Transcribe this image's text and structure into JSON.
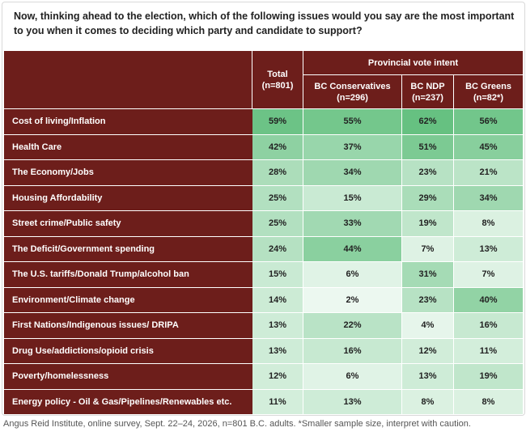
{
  "question": "Now, thinking ahead to the election, which of the following issues would you say are the most important to you when it comes to deciding which party and candidate to support?",
  "columns": {
    "total": [
      "Total",
      "(n=801)"
    ],
    "group_title": "Provincial vote intent",
    "sub": [
      [
        "BC Conservatives",
        "(n=296)"
      ],
      [
        "BC NDP",
        "(n=237)"
      ],
      [
        "BC Greens",
        "(n=82*)"
      ]
    ]
  },
  "colors": {
    "header_bg": "#6d1e1b",
    "scale_low": "#f4fbf6",
    "scale_high": "#66c181"
  },
  "chart_data": {
    "type": "table",
    "columns": [
      "Total (n=801)",
      "BC Conservatives (n=296)",
      "BC NDP (n=237)",
      "BC Greens (n=82*)"
    ],
    "rows": [
      {
        "label": "Cost of living/Inflation",
        "display": [
          "59%",
          "55%",
          "62%",
          "56%"
        ],
        "values": [
          59,
          55,
          62,
          56
        ]
      },
      {
        "label": "Health Care",
        "display": [
          "42%",
          "37%",
          "51%",
          "45%"
        ],
        "values": [
          42,
          37,
          51,
          45
        ]
      },
      {
        "label": "The Economy/Jobs",
        "display": [
          "28%",
          "34%",
          "23%",
          "21%"
        ],
        "values": [
          28,
          34,
          23,
          21
        ]
      },
      {
        "label": "Housing Affordability",
        "display": [
          "25%",
          "15%",
          "29%",
          "34%"
        ],
        "values": [
          25,
          15,
          29,
          34
        ]
      },
      {
        "label": "Street crime/Public safety",
        "display": [
          "25%",
          "33%",
          "19%",
          "8%"
        ],
        "values": [
          25,
          33,
          19,
          8
        ]
      },
      {
        "label": "The Deficit/Government spending",
        "display": [
          "24%",
          "44%",
          "7%",
          "13%"
        ],
        "values": [
          24,
          44,
          7,
          13
        ]
      },
      {
        "label": "The U.S. tariffs/Donald Trump/alcohol ban",
        "display": [
          "15%",
          "6%",
          "31%",
          "7%"
        ],
        "values": [
          15,
          6,
          31,
          7
        ]
      },
      {
        "label": "Environment/Climate change",
        "display": [
          "14%",
          "2%",
          "23%",
          "40%"
        ],
        "values": [
          14,
          2,
          23,
          40
        ]
      },
      {
        "label": "First Nations/Indigenous issues/ DRIPA",
        "display": [
          "13%",
          "22%",
          "4%",
          "16%"
        ],
        "values": [
          13,
          22,
          4,
          16
        ]
      },
      {
        "label": "Drug Use/addictions/opioid crisis",
        "display": [
          "13%",
          "16%",
          "12%",
          "11%"
        ],
        "values": [
          13,
          16,
          12,
          11
        ]
      },
      {
        "label": "Poverty/homelessness",
        "display": [
          "12%",
          "6%",
          "13%",
          "19%"
        ],
        "values": [
          12,
          6,
          13,
          19
        ]
      },
      {
        "label": "Energy policy - Oil & Gas/Pipelines/Renewables etc.",
        "display": [
          "11%",
          "13%",
          "8%",
          "8%"
        ],
        "values": [
          11,
          13,
          8,
          8
        ]
      }
    ]
  },
  "source": "Angus Reid Institute, online survey, Sept. 22–24, 2026, n=801 B.C. adults. *Smaller sample size, interpret with caution."
}
